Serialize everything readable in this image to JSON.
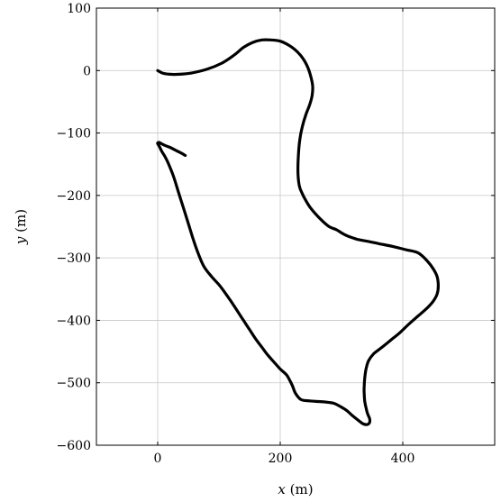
{
  "chart_data": {
    "type": "line",
    "title": "",
    "xlabel": "x (m)",
    "ylabel": "y (m)",
    "xlim": [
      -100,
      550
    ],
    "ylim": [
      -600,
      100
    ],
    "xticks": [
      0,
      200,
      400
    ],
    "yticks": [
      100,
      0,
      -100,
      -200,
      -300,
      -400,
      -500,
      -600
    ],
    "xtick_labels": [
      "0",
      "200",
      "400"
    ],
    "ytick_labels": [
      "100",
      "0",
      "−100",
      "−200",
      "−300",
      "−400",
      "−500",
      "−600"
    ],
    "grid": true,
    "series": [
      {
        "color": "#000000",
        "x": [
          0,
          8,
          20,
          35,
          55,
          80,
          105,
          125,
          140,
          155,
          170,
          185,
          200,
          215,
          228,
          238,
          245,
          250,
          253,
          252,
          248,
          242,
          236,
          232,
          230,
          229,
          229,
          230,
          232,
          235,
          240,
          248,
          258,
          268,
          280,
          292,
          300,
          310,
          325,
          345,
          365,
          385,
          405,
          425,
          440,
          450,
          456,
          458,
          456,
          450,
          440,
          425,
          410,
          395,
          380,
          365,
          352,
          344,
          340,
          338,
          337,
          337,
          338,
          340,
          342,
          344,
          346,
          346,
          344,
          340,
          334,
          326,
          317,
          308,
          298,
          288,
          275,
          262,
          248,
          234,
          225,
          220,
          215,
          210,
          200,
          190,
          180,
          170,
          160,
          150,
          140,
          130,
          120,
          110,
          100,
          88,
          75,
          65,
          58,
          50,
          42,
          34,
          26,
          18,
          12,
          7,
          3,
          0,
          0,
          2,
          6,
          12,
          20,
          30,
          40,
          45
        ],
        "y": [
          0,
          -4,
          -6,
          -6,
          -4,
          2,
          12,
          25,
          37,
          45,
          49,
          49,
          47,
          40,
          30,
          18,
          5,
          -10,
          -25,
          -40,
          -55,
          -70,
          -90,
          -110,
          -130,
          -150,
          -165,
          -178,
          -188,
          -195,
          -205,
          -218,
          -230,
          -240,
          -250,
          -255,
          -260,
          -265,
          -270,
          -274,
          -278,
          -282,
          -287,
          -292,
          -305,
          -318,
          -330,
          -345,
          -358,
          -369,
          -380,
          -393,
          -406,
          -420,
          -432,
          -444,
          -454,
          -465,
          -478,
          -492,
          -505,
          -518,
          -530,
          -540,
          -548,
          -553,
          -558,
          -563,
          -566,
          -567,
          -565,
          -559,
          -552,
          -544,
          -538,
          -533,
          -531,
          -530,
          -529,
          -527,
          -517,
          -505,
          -495,
          -487,
          -478,
          -467,
          -456,
          -443,
          -430,
          -415,
          -400,
          -385,
          -370,
          -356,
          -343,
          -330,
          -313,
          -290,
          -270,
          -245,
          -220,
          -195,
          -170,
          -150,
          -138,
          -130,
          -122,
          -117,
          -116,
          -115,
          -117,
          -120,
          -123,
          -128,
          -133,
          -136
        ]
      }
    ]
  }
}
